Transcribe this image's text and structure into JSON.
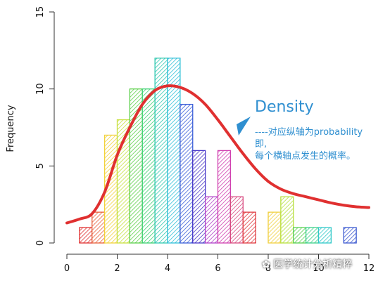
{
  "chart_data": {
    "type": "bar",
    "ylabel": "Frequency",
    "xlabel": "",
    "xlim": [
      0,
      12
    ],
    "ylim": [
      0,
      15
    ],
    "xticks": [
      "0",
      "2",
      "4",
      "6",
      "8",
      "10",
      "12"
    ],
    "yticks": [
      "0",
      "5",
      "10",
      "15"
    ],
    "bins": [
      {
        "x0": 0.5,
        "x1": 1.0,
        "count": 1,
        "color": "#e03030"
      },
      {
        "x0": 1.0,
        "x1": 1.5,
        "count": 2,
        "color": "#e8603a"
      },
      {
        "x0": 1.5,
        "x1": 2.0,
        "count": 7,
        "color": "#f2d23a"
      },
      {
        "x0": 2.0,
        "x1": 2.5,
        "count": 8,
        "color": "#c8e040"
      },
      {
        "x0": 2.5,
        "x1": 3.0,
        "count": 10,
        "color": "#5cd04a"
      },
      {
        "x0": 3.0,
        "x1": 3.5,
        "count": 10,
        "color": "#3ad070"
      },
      {
        "x0": 3.5,
        "x1": 4.0,
        "count": 12,
        "color": "#30c8b0"
      },
      {
        "x0": 4.0,
        "x1": 4.5,
        "count": 12,
        "color": "#30c0d8"
      },
      {
        "x0": 4.5,
        "x1": 5.0,
        "count": 9,
        "color": "#3a5ed8"
      },
      {
        "x0": 5.0,
        "x1": 5.5,
        "count": 6,
        "color": "#4a38c8"
      },
      {
        "x0": 5.5,
        "x1": 6.0,
        "count": 3,
        "color": "#b040c8"
      },
      {
        "x0": 6.0,
        "x1": 6.5,
        "count": 6,
        "color": "#d040b0"
      },
      {
        "x0": 6.5,
        "x1": 7.0,
        "count": 3,
        "color": "#d84a80"
      },
      {
        "x0": 7.0,
        "x1": 7.5,
        "count": 2,
        "color": "#e03a40"
      },
      {
        "x0": 7.5,
        "x1": 8.0,
        "count": 0,
        "color": "#e05030"
      },
      {
        "x0": 8.0,
        "x1": 8.5,
        "count": 2,
        "color": "#f0d040"
      },
      {
        "x0": 8.5,
        "x1": 9.0,
        "count": 3,
        "color": "#b8e040"
      },
      {
        "x0": 9.0,
        "x1": 9.5,
        "count": 1,
        "color": "#58d050"
      },
      {
        "x0": 9.5,
        "x1": 10.0,
        "count": 1,
        "color": "#3ad088"
      },
      {
        "x0": 10.0,
        "x1": 10.5,
        "count": 1,
        "color": "#30c8c8"
      },
      {
        "x0": 10.5,
        "x1": 11.0,
        "count": 0,
        "color": "#30b0d8"
      },
      {
        "x0": 11.0,
        "x1": 11.5,
        "count": 1,
        "color": "#3a58d0"
      }
    ],
    "density_curve": {
      "color": "#e03030",
      "x": [
        0,
        0.5,
        1.0,
        1.5,
        2.0,
        2.5,
        3.0,
        3.5,
        4.0,
        4.5,
        5.0,
        5.5,
        6.0,
        6.5,
        7.0,
        7.5,
        8.0,
        8.5,
        9.0,
        9.5,
        10.0,
        10.5,
        11.0,
        11.5,
        12.0
      ],
      "y": [
        1.3,
        1.55,
        1.9,
        3.3,
        5.7,
        7.5,
        9.0,
        9.9,
        10.2,
        10.1,
        9.7,
        9.0,
        8.0,
        6.9,
        5.8,
        4.8,
        4.0,
        3.5,
        3.2,
        3.0,
        2.8,
        2.6,
        2.45,
        2.35,
        2.3
      ]
    },
    "grid": false,
    "legend": "none"
  },
  "annotation": {
    "title": "Density",
    "lines": [
      "----对应纵轴为probability",
      "即,",
      "每个横轴点发生的概率。"
    ],
    "color": "#2f8fd0"
  },
  "watermark": "医学统计分析精粹"
}
